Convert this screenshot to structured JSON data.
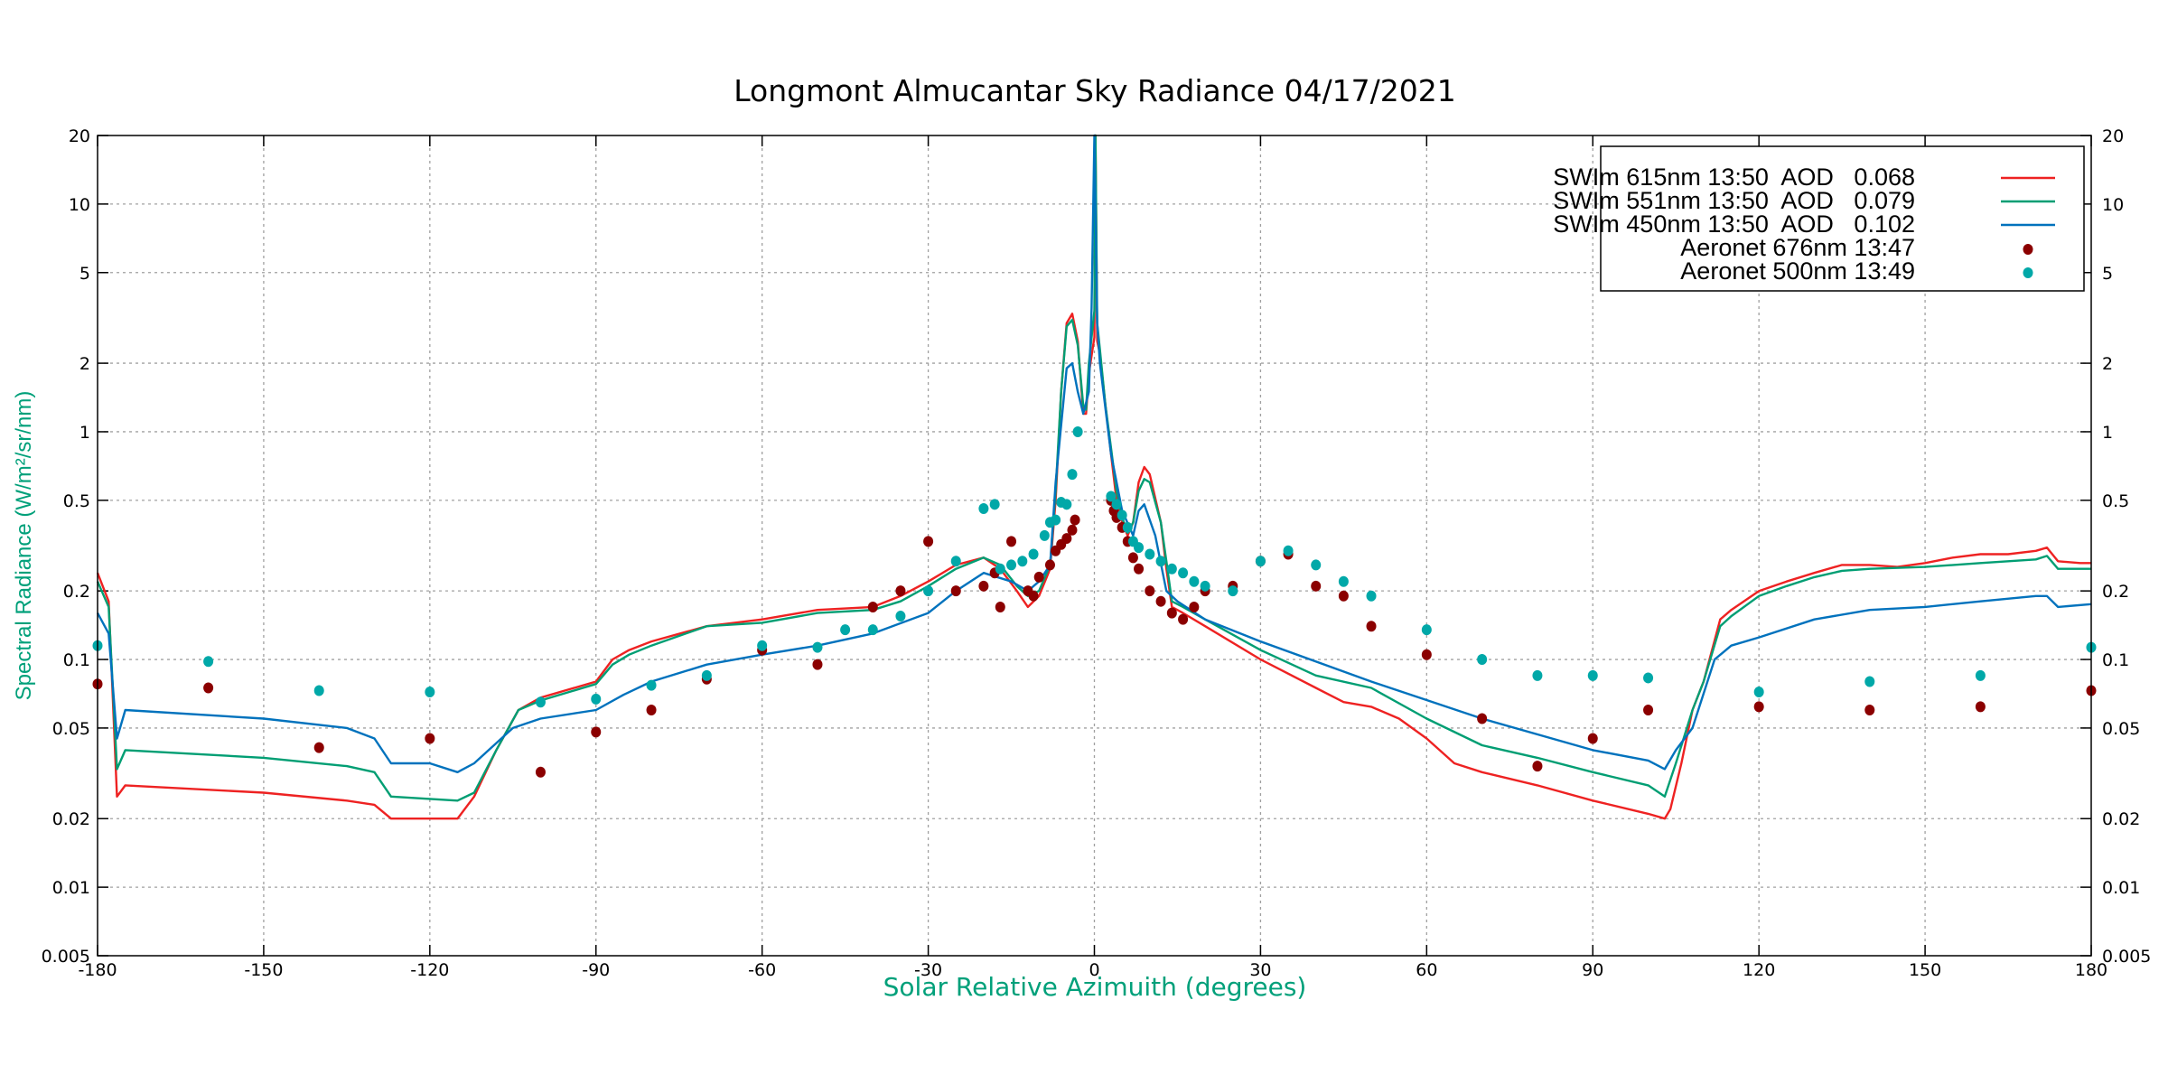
{
  "chart_data": {
    "type": "line",
    "title": "Longmont Almucantar Sky Radiance 04/17/2021",
    "xlabel": "Solar Relative Azimuith (degrees)",
    "ylabel": "Spectral Radiance (W/m²/sr/nm)",
    "xlim": [
      -180,
      180
    ],
    "ylim": [
      0.005,
      20
    ],
    "yscale": "log",
    "grid": true,
    "legend_position": "top-right",
    "x_ticks": [
      "-180",
      "-150",
      "-120",
      "-90",
      "-60",
      "-30",
      "0",
      "30",
      "60",
      "90",
      "120",
      "150",
      "180"
    ],
    "y_ticks": [
      "20",
      "10",
      "5",
      "2",
      "1",
      "0.5",
      "0.2",
      "0.1",
      "0.05",
      "0.02",
      "0.01",
      "0.005"
    ],
    "colors": {
      "title": "#000000",
      "axis_label": "#00a07a"
    },
    "series": [
      {
        "name": "SWIm 615nm 13:50  AOD   0.068",
        "kind": "line",
        "color": "#ee2222",
        "x": [
          -180,
          -178,
          -176.5,
          -175,
          -150,
          -135,
          -130,
          -127,
          -115,
          -112,
          -108,
          -104,
          -100,
          -90,
          -87,
          -84,
          -80,
          -70,
          -60,
          -50,
          -40,
          -35,
          -30,
          -25,
          -20,
          -17,
          -14,
          -12,
          -10,
          -8,
          -7,
          -6,
          -5,
          -4,
          -3,
          -2,
          -1.5,
          -1,
          0,
          0.2,
          0.5,
          1,
          2,
          3,
          4,
          5,
          6,
          7,
          8,
          9,
          10,
          12,
          13,
          14,
          16,
          20,
          30,
          40,
          45,
          50,
          55,
          60,
          65,
          70,
          80,
          90,
          100,
          103,
          104,
          106,
          108,
          110,
          113,
          115,
          120,
          125,
          130,
          135,
          140,
          145,
          150,
          155,
          160,
          165,
          170,
          172,
          174,
          178,
          180
        ],
        "y": [
          0.24,
          0.18,
          0.025,
          0.028,
          0.026,
          0.024,
          0.023,
          0.02,
          0.02,
          0.025,
          0.04,
          0.06,
          0.068,
          0.08,
          0.1,
          0.11,
          0.12,
          0.14,
          0.15,
          0.165,
          0.17,
          0.19,
          0.22,
          0.26,
          0.28,
          0.25,
          0.2,
          0.17,
          0.19,
          0.25,
          0.5,
          1.5,
          3.0,
          3.3,
          2.5,
          1.2,
          1.2,
          1.8,
          2.6,
          20,
          2.5,
          2.2,
          1.3,
          0.8,
          0.5,
          0.4,
          0.35,
          0.4,
          0.6,
          0.7,
          0.65,
          0.4,
          0.25,
          0.17,
          0.16,
          0.14,
          0.1,
          0.075,
          0.065,
          0.062,
          0.055,
          0.045,
          0.035,
          0.032,
          0.028,
          0.024,
          0.021,
          0.02,
          0.022,
          0.035,
          0.06,
          0.08,
          0.15,
          0.165,
          0.2,
          0.22,
          0.24,
          0.26,
          0.26,
          0.255,
          0.265,
          0.28,
          0.29,
          0.29,
          0.3,
          0.31,
          0.27,
          0.265,
          0.265
        ]
      },
      {
        "name": "SWIm 551nm 13:50  AOD   0.079",
        "kind": "line",
        "color": "#009e73",
        "x": [
          -180,
          -178,
          -176.5,
          -175,
          -150,
          -135,
          -130,
          -127,
          -115,
          -112,
          -108,
          -104,
          -100,
          -90,
          -87,
          -84,
          -80,
          -70,
          -60,
          -50,
          -40,
          -35,
          -30,
          -25,
          -20,
          -17,
          -14,
          -12,
          -10,
          -8,
          -7,
          -6,
          -5,
          -4,
          -3,
          -2,
          -1.5,
          -1,
          0,
          0.2,
          0.5,
          1,
          2,
          3,
          4,
          5,
          6,
          7,
          8,
          9,
          10,
          12,
          13,
          14,
          16,
          20,
          30,
          40,
          50,
          60,
          70,
          80,
          90,
          100,
          103,
          105,
          108,
          110,
          113,
          115,
          120,
          125,
          130,
          135,
          140,
          150,
          160,
          170,
          172,
          174,
          178,
          180
        ],
        "y": [
          0.22,
          0.17,
          0.033,
          0.04,
          0.037,
          0.034,
          0.032,
          0.025,
          0.024,
          0.026,
          0.04,
          0.06,
          0.066,
          0.078,
          0.095,
          0.105,
          0.115,
          0.14,
          0.145,
          0.16,
          0.165,
          0.18,
          0.21,
          0.25,
          0.28,
          0.26,
          0.21,
          0.19,
          0.2,
          0.26,
          0.55,
          1.5,
          2.9,
          3.1,
          2.4,
          1.3,
          1.25,
          2.0,
          3.4,
          20,
          3.0,
          2.3,
          1.3,
          0.85,
          0.55,
          0.42,
          0.36,
          0.4,
          0.55,
          0.62,
          0.6,
          0.4,
          0.27,
          0.18,
          0.17,
          0.15,
          0.11,
          0.085,
          0.075,
          0.055,
          0.042,
          0.037,
          0.032,
          0.028,
          0.025,
          0.035,
          0.06,
          0.08,
          0.14,
          0.155,
          0.19,
          0.21,
          0.23,
          0.245,
          0.25,
          0.255,
          0.265,
          0.275,
          0.285,
          0.25,
          0.25,
          0.25
        ]
      },
      {
        "name": "SWIm 450nm 13:50  AOD   0.102",
        "kind": "line",
        "color": "#0072bd",
        "x": [
          -180,
          -178,
          -176.5,
          -175,
          -150,
          -135,
          -130,
          -127,
          -120,
          -115,
          -112,
          -105,
          -100,
          -90,
          -85,
          -80,
          -70,
          -60,
          -50,
          -40,
          -30,
          -25,
          -20,
          -15,
          -12,
          -10,
          -8,
          -7,
          -5,
          -4,
          -3,
          -2,
          -1,
          -0.5,
          0,
          0.5,
          1,
          3,
          5,
          7,
          8,
          9,
          11,
          13,
          15,
          20,
          30,
          50,
          70,
          90,
          100,
          103,
          105,
          108,
          112,
          115,
          120,
          130,
          140,
          150,
          160,
          170,
          172,
          174,
          180
        ],
        "y": [
          0.16,
          0.13,
          0.045,
          0.06,
          0.055,
          0.05,
          0.045,
          0.035,
          0.035,
          0.032,
          0.035,
          0.05,
          0.055,
          0.06,
          0.07,
          0.08,
          0.095,
          0.105,
          0.115,
          0.13,
          0.16,
          0.2,
          0.24,
          0.22,
          0.2,
          0.22,
          0.26,
          0.6,
          1.9,
          2.0,
          1.5,
          1.2,
          1.5,
          3.5,
          20,
          3.0,
          2.0,
          0.8,
          0.45,
          0.35,
          0.45,
          0.48,
          0.35,
          0.2,
          0.18,
          0.15,
          0.12,
          0.08,
          0.055,
          0.04,
          0.036,
          0.033,
          0.04,
          0.05,
          0.1,
          0.115,
          0.125,
          0.15,
          0.165,
          0.17,
          0.18,
          0.19,
          0.19,
          0.17,
          0.175
        ]
      },
      {
        "name": "Aeronet 676nm 13:47",
        "kind": "scatter",
        "color": "#8b0000",
        "x": [
          -180,
          -160,
          -140,
          -120,
          -100,
          -90,
          -80,
          -70,
          -60,
          -50,
          -40,
          -35,
          -30,
          -25,
          -20,
          -18,
          -17,
          -15,
          -12,
          -11,
          -10,
          -8,
          -7,
          -6,
          -5,
          -4,
          -3.5,
          3,
          3.5,
          4,
          5,
          6,
          7,
          8,
          10,
          12,
          14,
          16,
          18,
          20,
          25,
          30,
          35,
          40,
          45,
          50,
          60,
          70,
          80,
          90,
          100,
          120,
          140,
          160,
          180
        ],
        "y": [
          0.078,
          0.075,
          0.041,
          0.045,
          0.032,
          0.048,
          0.06,
          0.082,
          0.11,
          0.095,
          0.17,
          0.2,
          0.33,
          0.2,
          0.21,
          0.24,
          0.17,
          0.33,
          0.2,
          0.19,
          0.23,
          0.26,
          0.3,
          0.32,
          0.34,
          0.37,
          0.41,
          0.5,
          0.45,
          0.42,
          0.38,
          0.33,
          0.28,
          0.25,
          0.2,
          0.18,
          0.16,
          0.15,
          0.17,
          0.2,
          0.21,
          0.27,
          0.29,
          0.21,
          0.19,
          0.14,
          0.105,
          0.055,
          0.034,
          0.045,
          0.06,
          0.062,
          0.06,
          0.062,
          0.073
        ]
      },
      {
        "name": "Aeronet 500nm 13:49",
        "kind": "scatter",
        "color": "#00a8a8",
        "x": [
          -180,
          -160,
          -140,
          -120,
          -100,
          -90,
          -80,
          -70,
          -60,
          -50,
          -45,
          -40,
          -35,
          -30,
          -25,
          -20,
          -18,
          -17,
          -15,
          -13,
          -11,
          -9,
          -8,
          -7,
          -6,
          -5,
          -4,
          -3,
          3,
          4,
          5,
          6,
          7,
          8,
          10,
          12,
          14,
          16,
          18,
          20,
          25,
          30,
          35,
          40,
          45,
          50,
          60,
          70,
          80,
          90,
          100,
          120,
          140,
          160,
          180
        ],
        "y": [
          0.115,
          0.098,
          0.073,
          0.072,
          0.065,
          0.067,
          0.077,
          0.085,
          0.115,
          0.113,
          0.135,
          0.135,
          0.155,
          0.2,
          0.27,
          0.46,
          0.48,
          0.25,
          0.26,
          0.27,
          0.29,
          0.35,
          0.4,
          0.41,
          0.49,
          0.48,
          0.65,
          1.0,
          0.52,
          0.48,
          0.43,
          0.38,
          0.33,
          0.31,
          0.29,
          0.27,
          0.25,
          0.24,
          0.22,
          0.21,
          0.2,
          0.27,
          0.3,
          0.26,
          0.22,
          0.19,
          0.135,
          0.1,
          0.085,
          0.085,
          0.083,
          0.072,
          0.08,
          0.085,
          0.113
        ]
      }
    ]
  }
}
